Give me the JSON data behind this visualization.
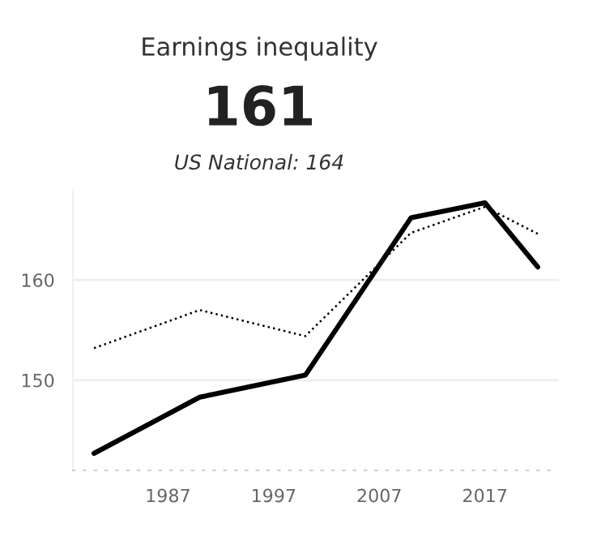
{
  "chart_data": {
    "type": "line",
    "title": "Earnings inequality",
    "subtitle": "161",
    "annotations": [
      "US National: 164"
    ],
    "x": [
      1980,
      1990,
      2000,
      2010,
      2017,
      2022
    ],
    "series": [
      {
        "color": "#000000",
        "line_style": "solid",
        "values": [
          142.7,
          148.3,
          150.5,
          166.2,
          167.7,
          161.3
        ]
      },
      {
        "color": "#000000",
        "line_style": "dotted",
        "values": [
          153.2,
          157.0,
          154.4,
          164.7,
          167.3,
          164.6
        ]
      }
    ],
    "xlim": [
      1978,
      2024
    ],
    "xticks": [
      1987,
      1997,
      2007,
      2017
    ],
    "ylim": [
      141,
      169
    ],
    "yticks": [
      150,
      160
    ],
    "grid": "y",
    "marker": "none",
    "legend": false
  }
}
